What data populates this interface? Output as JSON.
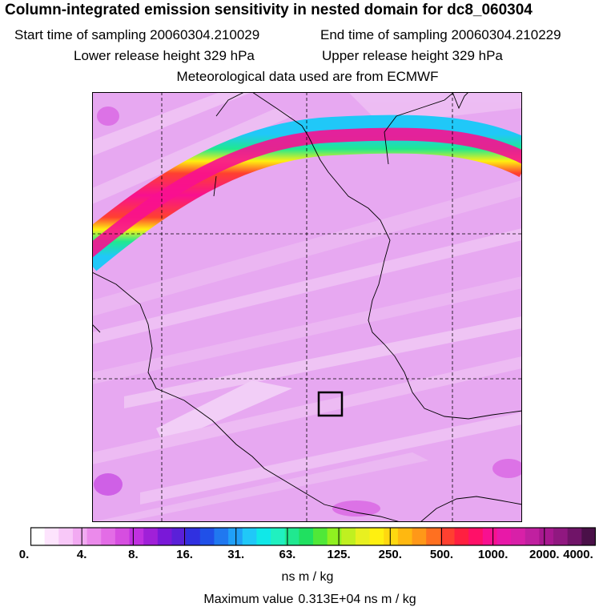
{
  "header": {
    "title": "Column-integrated emission sensitivity in nested domain for dc8_060304",
    "start_label": "Start time of sampling 20060304.210029",
    "end_label": "End time of sampling 20060304.210229",
    "lower_label": "Lower release height  329 hPa",
    "upper_label": "Upper release height  329 hPa",
    "met_label": "Meteorological data used are from ECMWF"
  },
  "colorbar": {
    "ticks": [
      "0.",
      "4.",
      "8.",
      "16.",
      "31.",
      "63.",
      "125.",
      "250.",
      "500.",
      "1000.",
      "2000.",
      "4000."
    ],
    "colors": [
      "#ffffff",
      "#fde4fd",
      "#f8c8f8",
      "#f2aaf2",
      "#eb8aeb",
      "#e36ce6",
      "#d64ee0",
      "#c030e0",
      "#a020d8",
      "#7a18d8",
      "#5a20d8",
      "#3030e0",
      "#2050e8",
      "#2078f0",
      "#20a0f8",
      "#20c8f8",
      "#10e8e8",
      "#20f0c0",
      "#20e890",
      "#20e060",
      "#50e838",
      "#90f020",
      "#c0f020",
      "#e8f020",
      "#fff010",
      "#ffd810",
      "#ffb810",
      "#ff9818",
      "#ff7020",
      "#ff4030",
      "#ff2040",
      "#ff1068",
      "#f81090",
      "#e818a8",
      "#d820a8",
      "#c020a0",
      "#a81890",
      "#901880",
      "#701468",
      "#4a1048"
    ],
    "units": "ns m / kg"
  },
  "footer": {
    "max_label": "Maximum value",
    "max_value": "0.313E+04 ns m / kg"
  },
  "map": {
    "background_color": "#e6a6f0",
    "receptor_box_color": "#000000"
  }
}
